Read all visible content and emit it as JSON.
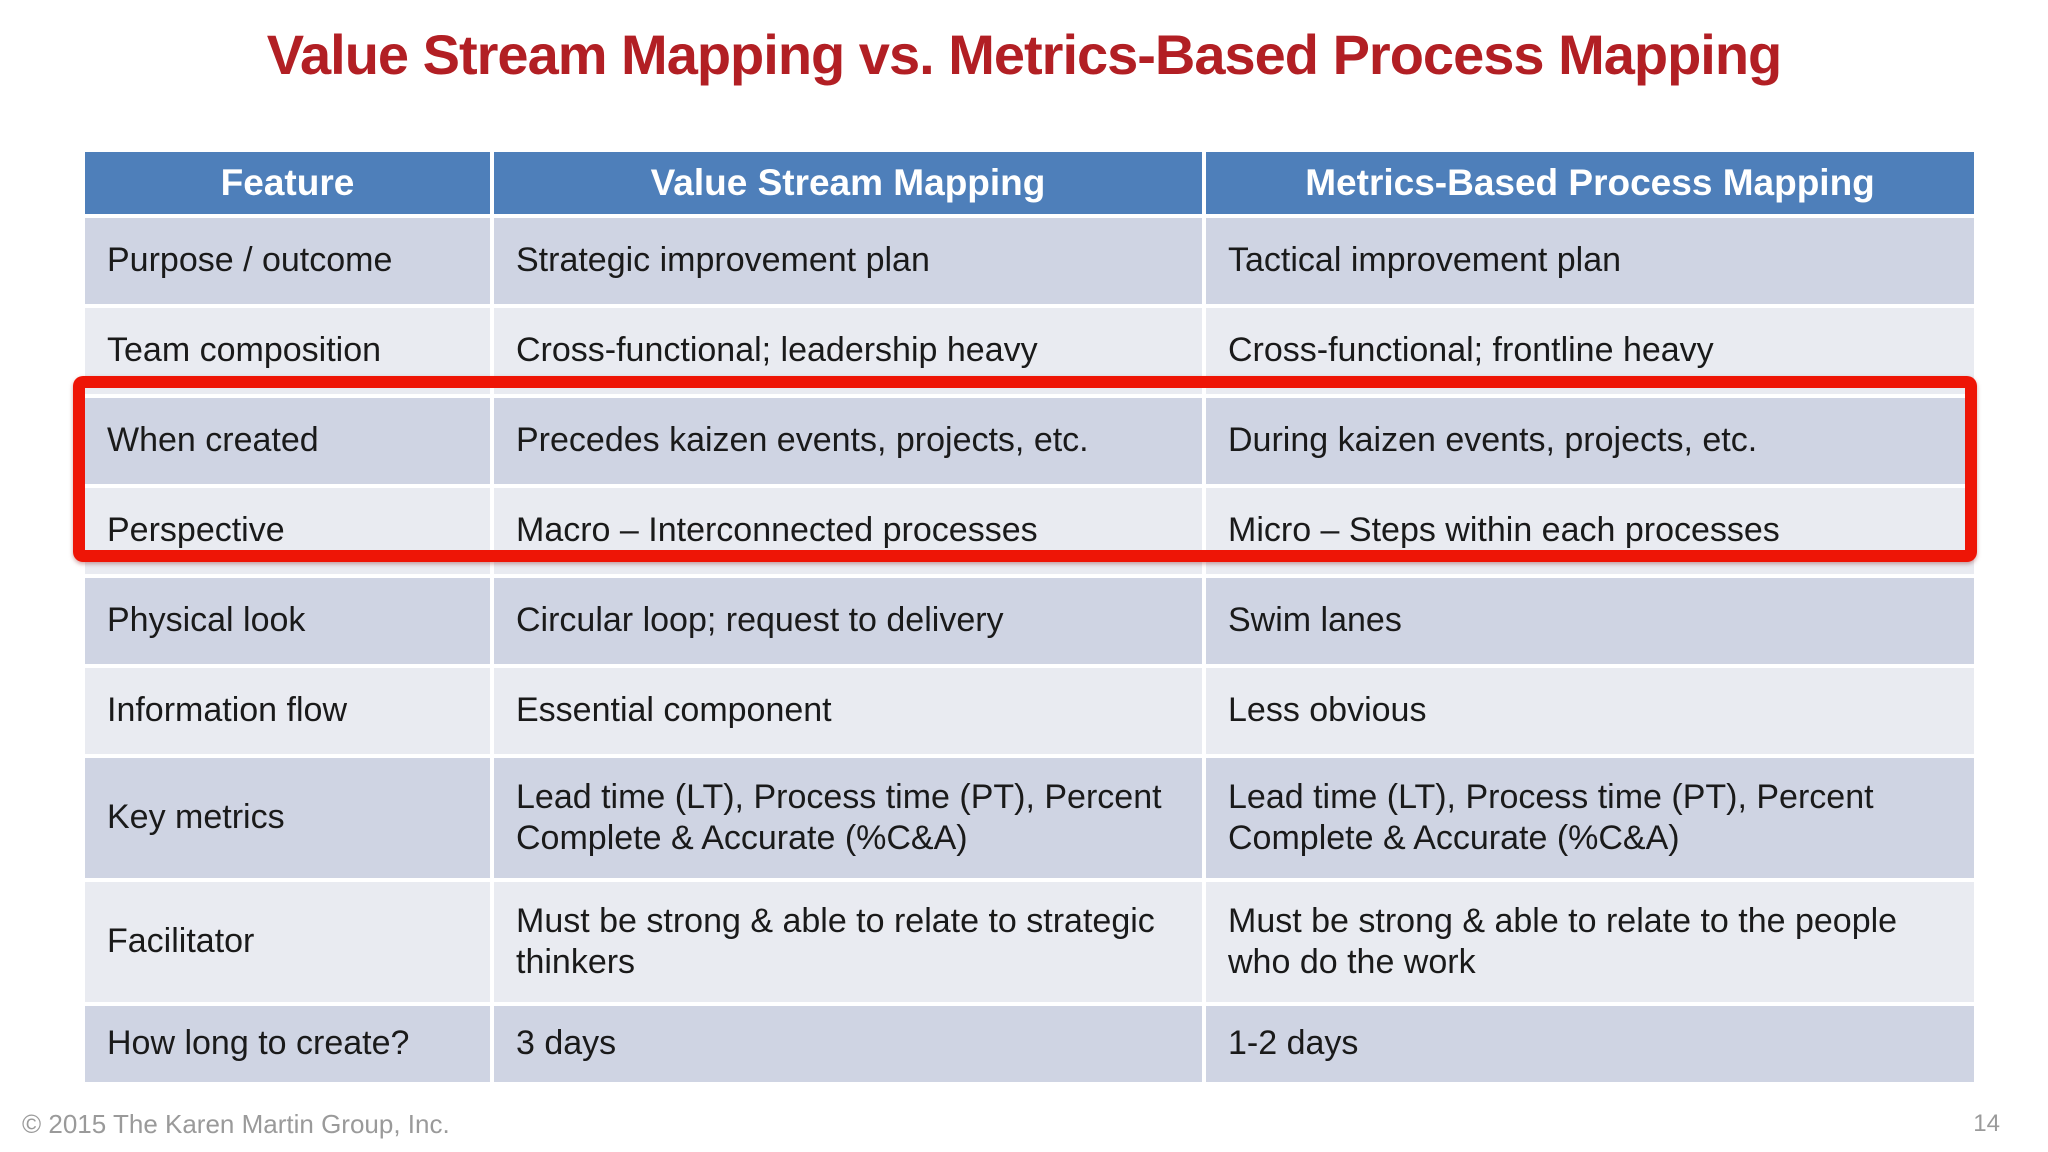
{
  "title": "Value Stream Mapping vs. Metrics-Based Process Mapping",
  "table": {
    "headers": [
      "Feature",
      "Value Stream Mapping",
      "Metrics-Based Process Mapping"
    ],
    "rows": [
      {
        "feature": "Purpose / outcome",
        "vsm": "Strategic improvement plan",
        "mbpm": "Tactical improvement plan",
        "highlighted": false
      },
      {
        "feature": "Team composition",
        "vsm": "Cross-functional; leadership heavy",
        "mbpm": "Cross-functional; frontline heavy",
        "highlighted": false
      },
      {
        "feature": "When created",
        "vsm": "Precedes kaizen events, projects, etc.",
        "mbpm": "During kaizen events, projects, etc.",
        "highlighted": true
      },
      {
        "feature": "Perspective",
        "vsm": "Macro – Interconnected processes",
        "mbpm": "Micro – Steps within each processes",
        "highlighted": true
      },
      {
        "feature": "Physical look",
        "vsm": "Circular loop; request to delivery",
        "mbpm": "Swim lanes",
        "highlighted": false
      },
      {
        "feature": "Information flow",
        "vsm": "Essential component",
        "mbpm": "Less obvious",
        "highlighted": false
      },
      {
        "feature": "Key metrics",
        "vsm": "Lead time (LT), Process time (PT), Percent Complete & Accurate (%C&A)",
        "mbpm": "Lead time (LT), Process time (PT), Percent Complete & Accurate (%C&A)",
        "highlighted": false
      },
      {
        "feature": "Facilitator",
        "vsm": "Must be strong & able to relate to strategic thinkers",
        "mbpm": "Must be strong & able to relate to the people who do the work",
        "highlighted": false
      },
      {
        "feature": "How long to create?",
        "vsm": "3 days",
        "mbpm": "1-2 days",
        "highlighted": false
      }
    ]
  },
  "footer": {
    "copyright": "© 2015 The Karen Martin Group, Inc.",
    "page_number": "14"
  },
  "colors": {
    "title_red": "#b21f24",
    "header_blue": "#4e7fba",
    "row_dark": "#cfd4e3",
    "row_light": "#e9ebf1",
    "highlight_red": "#ee1506",
    "footer_gray": "#9a9a9a"
  }
}
